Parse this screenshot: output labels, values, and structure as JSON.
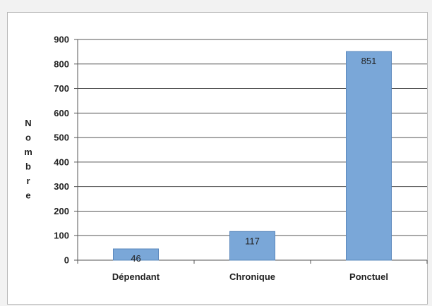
{
  "chart_data": {
    "type": "bar",
    "categories": [
      "Dépendant",
      "Chronique",
      "Ponctuel"
    ],
    "values": [
      46,
      117,
      851
    ],
    "data_labels": [
      "46",
      "117",
      "851"
    ],
    "title": "",
    "xlabel": "",
    "ylabel": "Nombre",
    "ylim": [
      0,
      900
    ],
    "yticks": [
      "0",
      "100",
      "200",
      "300",
      "400",
      "500",
      "600",
      "700",
      "800",
      "900"
    ],
    "grid": true,
    "legend": "none",
    "bar_color": "#7aa7d8",
    "bar_edge_color": "#5b88bd"
  }
}
